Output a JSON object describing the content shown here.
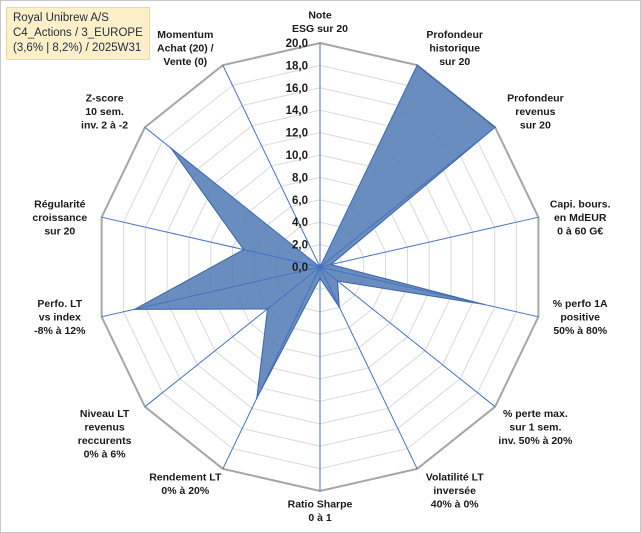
{
  "title": {
    "line1": "Royal Unibrew A/S",
    "line2": "C4_Actions / 3_EUROPE",
    "line3": "(3,6% | 8,2%) / 2025W31"
  },
  "chart_data": {
    "type": "radar",
    "rmin": 0,
    "rmax": 20,
    "ticks": [
      "0,0",
      "2,0",
      "4,0",
      "6,0",
      "8,0",
      "10,0",
      "12,0",
      "14,0",
      "16,0",
      "18,0",
      "20,0"
    ],
    "axes": [
      [
        "Note",
        "ESG sur 20"
      ],
      [
        "Profondeur",
        "historique",
        "sur 20"
      ],
      [
        "Profondeur",
        "revenus",
        "sur 20"
      ],
      [
        "Capi. bours.",
        "en MdEUR",
        "0 à 60 G€"
      ],
      [
        "% perfo 1A",
        "positive",
        "50% à 80%"
      ],
      [
        "% perte max.",
        "sur 1 sem.",
        "inv. 50% à 20%"
      ],
      [
        "Volatilité LT",
        "inversée",
        "40% à 0%"
      ],
      [
        "Ratio Sharpe",
        "0 à 1"
      ],
      [
        "Rendement LT",
        "0% à 20%"
      ],
      [
        "Niveau LT",
        "revenus",
        "reccurents",
        "0% à 6%"
      ],
      [
        "Perfo. LT",
        "vs index",
        "-8% à 12%"
      ],
      [
        "Régularité",
        "croissance",
        "sur 20"
      ],
      [
        "Z-score",
        "10 sem.",
        "inv. 2 à -2"
      ],
      [
        "Momentum",
        "Achat (20) /",
        "Vente (0)"
      ]
    ],
    "series": [
      {
        "values": [
          0,
          20,
          20,
          1,
          15,
          2,
          4,
          1,
          13,
          6,
          17,
          7,
          17,
          0
        ],
        "color": "#4f79b3"
      }
    ],
    "grid": true
  }
}
